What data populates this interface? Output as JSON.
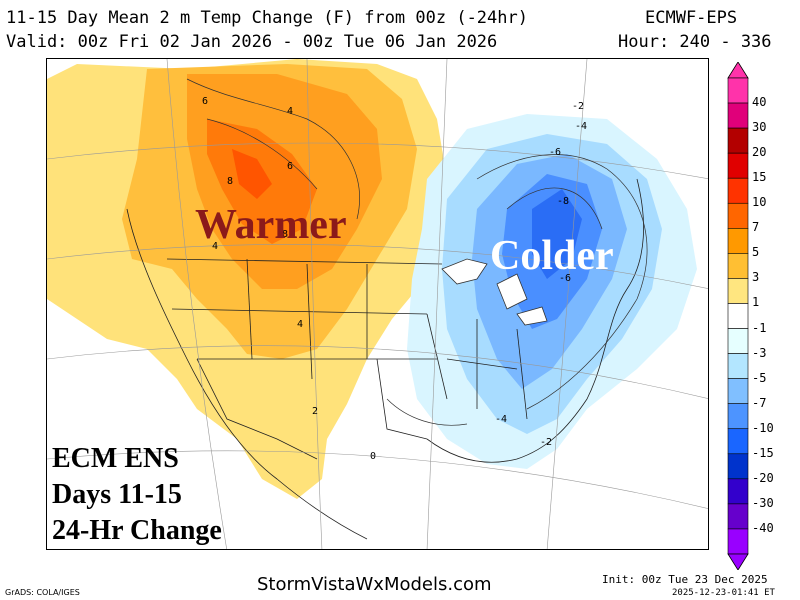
{
  "header": {
    "title": "11-15 Day Mean 2 m Temp Change (F) from 00z (-24hr)",
    "model": "ECMWF-EPS",
    "valid": "Valid: 00z Fri 02 Jan 2026 - 00z Tue 06 Jan 2026",
    "hour": "Hour: 240 - 336"
  },
  "map": {
    "warm_label": "Warmer",
    "cold_label": "Colder",
    "info_lines": [
      "ECM ENS",
      "Days 11-15",
      "24-Hr Change"
    ],
    "contour_labels": [
      "6",
      "4",
      "8",
      "6",
      "4",
      "8",
      "4",
      "2",
      "0",
      "-2",
      "-4",
      "-6",
      "-8",
      "-6",
      "-4",
      "-2"
    ]
  },
  "colorbar": {
    "labels": [
      "40",
      "30",
      "20",
      "15",
      "10",
      "7",
      "5",
      "3",
      "1",
      "-1",
      "-3",
      "-5",
      "-7",
      "-10",
      "-15",
      "-20",
      "-30",
      "-40"
    ],
    "colors": [
      "#ff33aa",
      "#e0007a",
      "#b30000",
      "#e00000",
      "#ff3300",
      "#ff6600",
      "#ff9900",
      "#ffbf33",
      "#ffe680",
      "#ffffff",
      "#e6ffff",
      "#b3e6ff",
      "#80bfff",
      "#4d94ff",
      "#1a66ff",
      "#0033cc",
      "#3300cc",
      "#6600cc",
      "#9900ff"
    ]
  },
  "footer": {
    "grads": "GrADS: COLA/IGES",
    "site": "StormVistaWxModels.com",
    "init": "Init: 00z Tue 23 Dec 2025",
    "generated": "2025-12-23-01:41 ET"
  }
}
